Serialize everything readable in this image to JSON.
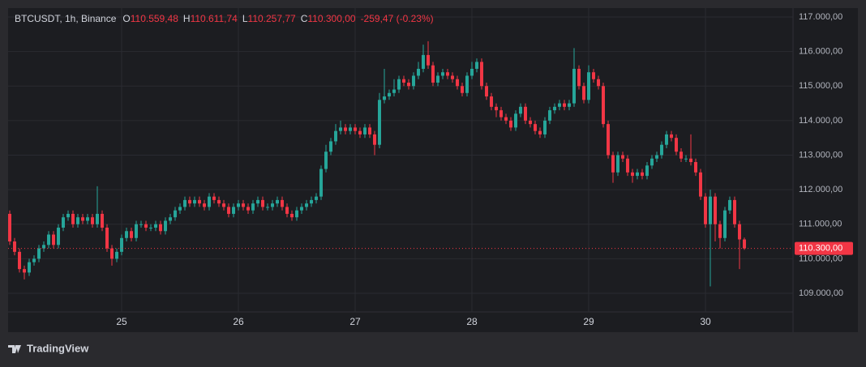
{
  "chart_data": {
    "type": "candlestick",
    "header": {
      "symbol": "BTCUSDT, 1h, Binance",
      "o_label": "O",
      "open": "110.559,48",
      "h_label": "H",
      "high": "110.611,74",
      "l_label": "L",
      "low": "110.257,77",
      "c_label": "C",
      "close": "110.300,00",
      "change": "-259,47 (-0.23%)"
    },
    "up_color": "#26a69a",
    "down_color": "#f23645",
    "xlim": [
      -2,
      161
    ],
    "ylim": [
      108460,
      117493
    ],
    "xticks": [
      {
        "value": 23,
        "label": "25"
      },
      {
        "value": 47,
        "label": "26"
      },
      {
        "value": 71,
        "label": "27"
      },
      {
        "value": 95,
        "label": "28"
      },
      {
        "value": 119,
        "label": "29"
      },
      {
        "value": 143,
        "label": "30"
      }
    ],
    "yticks": [
      {
        "value": 109000,
        "label": "109.000,00"
      },
      {
        "value": 110000,
        "label": "110.000,00"
      },
      {
        "value": 111000,
        "label": "111.000,00"
      },
      {
        "value": 112000,
        "label": "112.000,00"
      },
      {
        "value": 113000,
        "label": "113.000,00"
      },
      {
        "value": 114000,
        "label": "114.000,00"
      },
      {
        "value": 115000,
        "label": "115.000,00"
      },
      {
        "value": 116000,
        "label": "116.000,00"
      },
      {
        "value": 117000,
        "label": "117.000,00"
      }
    ],
    "grid": true,
    "last_price": {
      "value": 110300,
      "label": "110.300,00"
    },
    "brand": "TradingView",
    "x": [
      0,
      1,
      2,
      3,
      4,
      5,
      6,
      7,
      8,
      9,
      10,
      11,
      12,
      13,
      14,
      15,
      16,
      17,
      18,
      19,
      20,
      21,
      22,
      23,
      24,
      25,
      26,
      27,
      28,
      29,
      30,
      31,
      32,
      33,
      34,
      35,
      36,
      37,
      38,
      39,
      40,
      41,
      42,
      43,
      44,
      45,
      46,
      47,
      48,
      49,
      50,
      51,
      52,
      53,
      54,
      55,
      56,
      57,
      58,
      59,
      60,
      61,
      62,
      63,
      64,
      65,
      66,
      67,
      68,
      69,
      70,
      71,
      72,
      73,
      74,
      75,
      76,
      77,
      78,
      79,
      80,
      81,
      82,
      83,
      84,
      85,
      86,
      87,
      88,
      89,
      90,
      91,
      92,
      93,
      94,
      95,
      96,
      97,
      98,
      99,
      100,
      101,
      102,
      103,
      104,
      105,
      106,
      107,
      108,
      109,
      110,
      111,
      112,
      113,
      114,
      115,
      116,
      117,
      118,
      119,
      120,
      121,
      122,
      123,
      124,
      125,
      126,
      127,
      128,
      129,
      130,
      131,
      132,
      133,
      134,
      135,
      136,
      137,
      138,
      139,
      140,
      141,
      142,
      143,
      144,
      145,
      146,
      147,
      148,
      149,
      150,
      151
    ],
    "open": [
      111300,
      110500,
      110200,
      109700,
      109600,
      109900,
      110000,
      110300,
      110400,
      110700,
      110400,
      110900,
      111200,
      111300,
      111000,
      111200,
      111100,
      111200,
      111000,
      111300,
      110900,
      110300,
      110000,
      110200,
      110600,
      110800,
      110600,
      111000,
      111000,
      110900,
      110900,
      111000,
      110800,
      111100,
      111200,
      111400,
      111500,
      111700,
      111600,
      111700,
      111600,
      111500,
      111800,
      111700,
      111600,
      111500,
      111300,
      111500,
      111600,
      111500,
      111400,
      111600,
      111700,
      111500,
      111500,
      111600,
      111700,
      111500,
      111300,
      111200,
      111400,
      111500,
      111600,
      111700,
      111800,
      112600,
      113100,
      113400,
      113700,
      113800,
      113700,
      113800,
      113700,
      113600,
      113800,
      113600,
      113300,
      114600,
      114700,
      114800,
      114900,
      115200,
      115100,
      115000,
      115300,
      115500,
      115900,
      115600,
      115100,
      115300,
      115400,
      115300,
      115200,
      115000,
      114800,
      115300,
      115500,
      115700,
      115000,
      114700,
      114400,
      114300,
      114100,
      114000,
      113800,
      114200,
      114400,
      114000,
      113900,
      113700,
      113600,
      114000,
      114300,
      114400,
      114500,
      114400,
      114500,
      115500,
      115000,
      114600,
      115400,
      115200,
      115000,
      113900,
      113000,
      112500,
      113000,
      112900,
      112500,
      112400,
      112500,
      112400,
      112700,
      112900,
      113000,
      113300,
      113600,
      113500,
      113100,
      112900,
      112900,
      112800,
      112500,
      111800,
      111000,
      111800,
      111000,
      110600,
      111400,
      111700,
      111000,
      110559.48
    ],
    "high": [
      111400,
      110600,
      110300,
      109800,
      110000,
      110100,
      110400,
      110500,
      110800,
      110800,
      111000,
      111300,
      111400,
      111400,
      111300,
      111300,
      111300,
      111300,
      112100,
      111400,
      111000,
      110400,
      110300,
      110700,
      110900,
      110900,
      111100,
      111100,
      111100,
      111000,
      111100,
      111100,
      111200,
      111300,
      111500,
      111600,
      111800,
      111800,
      111800,
      111800,
      111700,
      111900,
      111900,
      111800,
      111700,
      111600,
      111600,
      111700,
      111700,
      111600,
      111700,
      111800,
      111800,
      111600,
      111700,
      111800,
      111800,
      111600,
      111400,
      111500,
      111600,
      111700,
      111800,
      111900,
      112700,
      113300,
      113500,
      113900,
      114000,
      113900,
      113900,
      113900,
      113800,
      113900,
      113900,
      113700,
      114800,
      115500,
      114900,
      115200,
      115300,
      115300,
      115200,
      115400,
      115700,
      116200,
      116300,
      115700,
      115400,
      115500,
      115500,
      115400,
      115300,
      115100,
      115400,
      115700,
      115800,
      115800,
      115100,
      114800,
      114500,
      114400,
      114200,
      114100,
      114300,
      114500,
      114500,
      114100,
      114000,
      113800,
      114100,
      114400,
      114500,
      114600,
      114600,
      114600,
      116100,
      115600,
      115100,
      115600,
      115500,
      115300,
      115100,
      114000,
      113100,
      113100,
      113100,
      113000,
      112600,
      112600,
      112600,
      112800,
      113000,
      113100,
      113400,
      113700,
      113700,
      113600,
      113200,
      113000,
      113600,
      112900,
      112600,
      111900,
      112000,
      111900,
      111100,
      111500,
      111800,
      111800,
      111100,
      110611.74
    ],
    "low": [
      110400,
      110100,
      109600,
      109400,
      109500,
      109800,
      109900,
      110200,
      110300,
      110300,
      110300,
      110800,
      111100,
      110900,
      110900,
      111000,
      111000,
      110900,
      110900,
      110800,
      110200,
      109800,
      109900,
      110100,
      110500,
      110500,
      110500,
      110900,
      110800,
      110800,
      110800,
      110700,
      110700,
      111000,
      111100,
      111300,
      111400,
      111500,
      111500,
      111500,
      111400,
      111400,
      111600,
      111500,
      111400,
      111200,
      111200,
      111400,
      111400,
      111300,
      111300,
      111500,
      111400,
      111400,
      111400,
      111500,
      111400,
      111200,
      111100,
      111100,
      111300,
      111400,
      111500,
      111600,
      111700,
      112500,
      113000,
      113300,
      113600,
      113600,
      113600,
      113600,
      113500,
      113500,
      113500,
      113000,
      113200,
      114500,
      114600,
      114700,
      114800,
      115000,
      114900,
      114900,
      115200,
      115400,
      115500,
      115000,
      115000,
      115200,
      115200,
      115100,
      114900,
      114700,
      114700,
      115200,
      115400,
      114900,
      114600,
      114300,
      114100,
      114000,
      113900,
      113700,
      113700,
      114100,
      113900,
      113800,
      113600,
      113500,
      113500,
      113900,
      114200,
      114300,
      114300,
      114300,
      114400,
      114900,
      114500,
      114500,
      115100,
      114900,
      113800,
      112900,
      112200,
      112400,
      112800,
      112400,
      112200,
      112300,
      112300,
      112300,
      112600,
      112800,
      112900,
      113200,
      113400,
      113000,
      112800,
      112800,
      112700,
      112400,
      111700,
      110900,
      109200,
      110500,
      110300,
      110500,
      111300,
      110900,
      109700,
      110257.77
    ],
    "close": [
      110500,
      110200,
      109700,
      109600,
      109900,
      110000,
      110300,
      110400,
      110700,
      110400,
      110900,
      111200,
      111300,
      111000,
      111200,
      111100,
      111200,
      111000,
      111300,
      110900,
      110300,
      110000,
      110200,
      110600,
      110800,
      110600,
      111000,
      111000,
      110900,
      110900,
      111000,
      110800,
      111100,
      111200,
      111400,
      111500,
      111700,
      111600,
      111700,
      111600,
      111500,
      111800,
      111700,
      111600,
      111500,
      111300,
      111500,
      111600,
      111500,
      111400,
      111600,
      111700,
      111500,
      111500,
      111600,
      111700,
      111500,
      111300,
      111200,
      111400,
      111500,
      111600,
      111700,
      111800,
      112600,
      113100,
      113400,
      113700,
      113800,
      113700,
      113800,
      113700,
      113600,
      113800,
      113600,
      113300,
      114600,
      114700,
      114800,
      114900,
      115200,
      115100,
      115000,
      115300,
      115500,
      115900,
      115600,
      115100,
      115300,
      115400,
      115300,
      115200,
      115000,
      114800,
      115300,
      115500,
      115700,
      115000,
      114700,
      114400,
      114300,
      114100,
      114000,
      113800,
      114200,
      114400,
      114000,
      113900,
      113700,
      113600,
      114000,
      114300,
      114400,
      114500,
      114400,
      114500,
      115500,
      115000,
      114600,
      115400,
      115200,
      115000,
      113900,
      113000,
      112500,
      113000,
      112900,
      112500,
      112400,
      112500,
      112400,
      112700,
      112900,
      113000,
      113300,
      113600,
      113500,
      113100,
      112900,
      112900,
      112800,
      112500,
      111800,
      111000,
      111800,
      111000,
      110600,
      111400,
      111700,
      111000,
      110559.48,
      110300
    ]
  }
}
